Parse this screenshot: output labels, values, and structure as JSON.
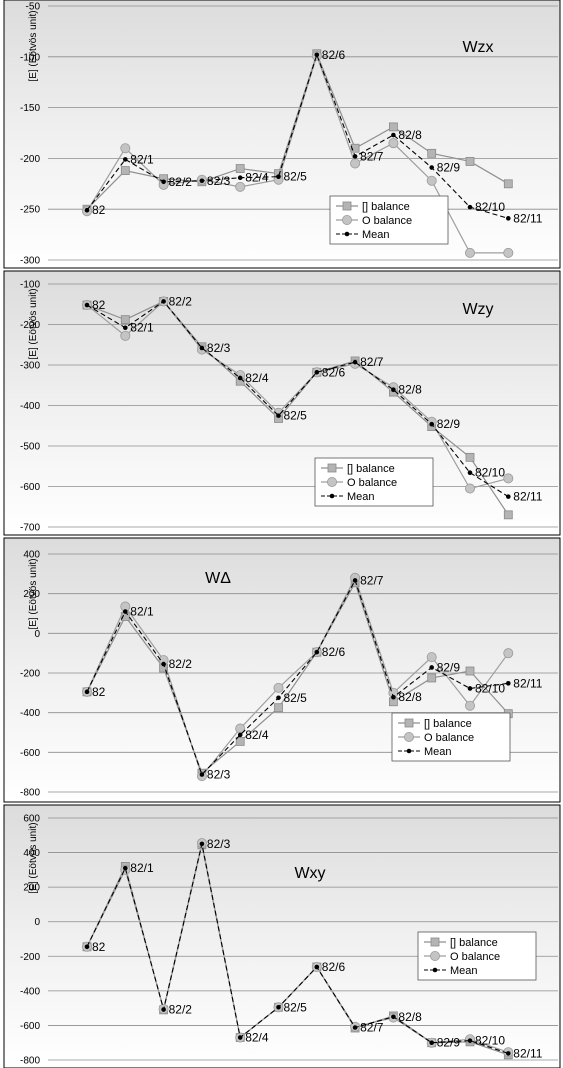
{
  "y_axis_label": "[E] (Eötvös unit)",
  "legend": {
    "square_label": "[] balance",
    "circle_label": "O balance",
    "mean_label": "Mean"
  },
  "colors": {
    "square_series": "#8f8f8f",
    "circle_series": "#9e9e9e",
    "mean_series": "#000000",
    "gridline": "#8c8c8c",
    "frame": "#000000"
  },
  "chart_data": [
    {
      "type": "line",
      "title": "Wzx",
      "ylabel": "[E] (Eötvös unit)",
      "ylim": [
        -300,
        -50
      ],
      "yticks": [
        -300,
        -250,
        -200,
        -150,
        -100,
        -50
      ],
      "grid": true,
      "legend_position": "bottom-right",
      "categories": [
        "82",
        "82/1",
        "82/2",
        "82/3",
        "82/4",
        "82/5",
        "82/6",
        "82/7",
        "82/8",
        "82/9",
        "82/10",
        "82/11"
      ],
      "series": [
        {
          "name": "[] balance",
          "values": [
            -250,
            -212,
            -220,
            -223,
            -210,
            -215,
            -97,
            -190,
            -169,
            -195,
            -203,
            -225
          ]
        },
        {
          "name": "O balance",
          "values": [
            -252,
            -190,
            -226,
            -221,
            -228,
            -221,
            -99,
            -205,
            -185,
            -222,
            -293,
            -293
          ]
        },
        {
          "name": "Mean",
          "values": [
            -251,
            -201,
            -223,
            -222,
            -219,
            -218,
            -98,
            -198,
            -177,
            -209,
            -248,
            -259
          ]
        }
      ]
    },
    {
      "type": "line",
      "title": "Wzy",
      "ylabel": "[E] (Eötvös unit)",
      "ylim": [
        -700,
        -100
      ],
      "yticks": [
        -700,
        -600,
        -500,
        -400,
        -300,
        -200,
        -100
      ],
      "grid": true,
      "legend_position": "bottom-right",
      "categories": [
        "82",
        "82/1",
        "82/2",
        "82/3",
        "82/4",
        "82/5",
        "82/6",
        "82/7",
        "82/8",
        "82/9",
        "82/10",
        "82/11"
      ],
      "series": [
        {
          "name": "[] balance",
          "values": [
            -152,
            -188,
            -143,
            -255,
            -340,
            -432,
            -318,
            -290,
            -367,
            -452,
            -528,
            -670
          ]
        },
        {
          "name": "O balance",
          "values": [
            -152,
            -228,
            -143,
            -262,
            -325,
            -418,
            -318,
            -297,
            -355,
            -440,
            -605,
            -580
          ]
        },
        {
          "name": "Mean",
          "values": [
            -152,
            -208,
            -143,
            -258,
            -332,
            -425,
            -318,
            -293,
            -361,
            -446,
            -566,
            -625
          ]
        }
      ]
    },
    {
      "type": "line",
      "title": "WΔ",
      "ylabel": "[E] (Eötvös unit)",
      "ylim": [
        -800,
        400
      ],
      "yticks": [
        -800,
        -600,
        -400,
        -200,
        0,
        200,
        400
      ],
      "grid": true,
      "legend_position": "bottom-right",
      "categories": [
        "82",
        "82/1",
        "82/2",
        "82/3",
        "82/4",
        "82/5",
        "82/6",
        "82/7",
        "82/8",
        "82/9",
        "82/10",
        "82/11"
      ],
      "series": [
        {
          "name": "[] balance",
          "values": [
            -295,
            85,
            -175,
            -705,
            -545,
            -375,
            -95,
            255,
            -345,
            -225,
            -190,
            -405
          ]
        },
        {
          "name": "O balance",
          "values": [
            -295,
            135,
            -135,
            -720,
            -480,
            -275,
            -95,
            280,
            -300,
            -120,
            -365,
            -100
          ]
        },
        {
          "name": "Mean",
          "values": [
            -295,
            110,
            -155,
            -712,
            -512,
            -325,
            -95,
            267,
            -322,
            -172,
            -278,
            -252
          ]
        }
      ]
    },
    {
      "type": "line",
      "title": "Wxy",
      "ylabel": "[E] (Eötvös unit)",
      "ylim": [
        -800,
        600
      ],
      "yticks": [
        -800,
        -600,
        -400,
        -200,
        0,
        200,
        400,
        600
      ],
      "grid": true,
      "legend_position": "right",
      "categories": [
        "82",
        "82/1",
        "82/2",
        "82/3",
        "82/4",
        "82/5",
        "82/6",
        "82/7",
        "82/8",
        "82/9",
        "82/10",
        "82/11"
      ],
      "series": [
        {
          "name": "[] balance",
          "values": [
            -145,
            320,
            -510,
            445,
            -670,
            -495,
            -262,
            -615,
            -545,
            -700,
            -695,
            -770
          ]
        },
        {
          "name": "O balance",
          "values": [
            -145,
            300,
            -505,
            455,
            -670,
            -495,
            -262,
            -608,
            -555,
            -700,
            -680,
            -755
          ]
        },
        {
          "name": "Mean",
          "values": [
            -145,
            310,
            -508,
            450,
            -670,
            -495,
            -262,
            -612,
            -550,
            -700,
            -688,
            -762
          ]
        }
      ]
    }
  ]
}
